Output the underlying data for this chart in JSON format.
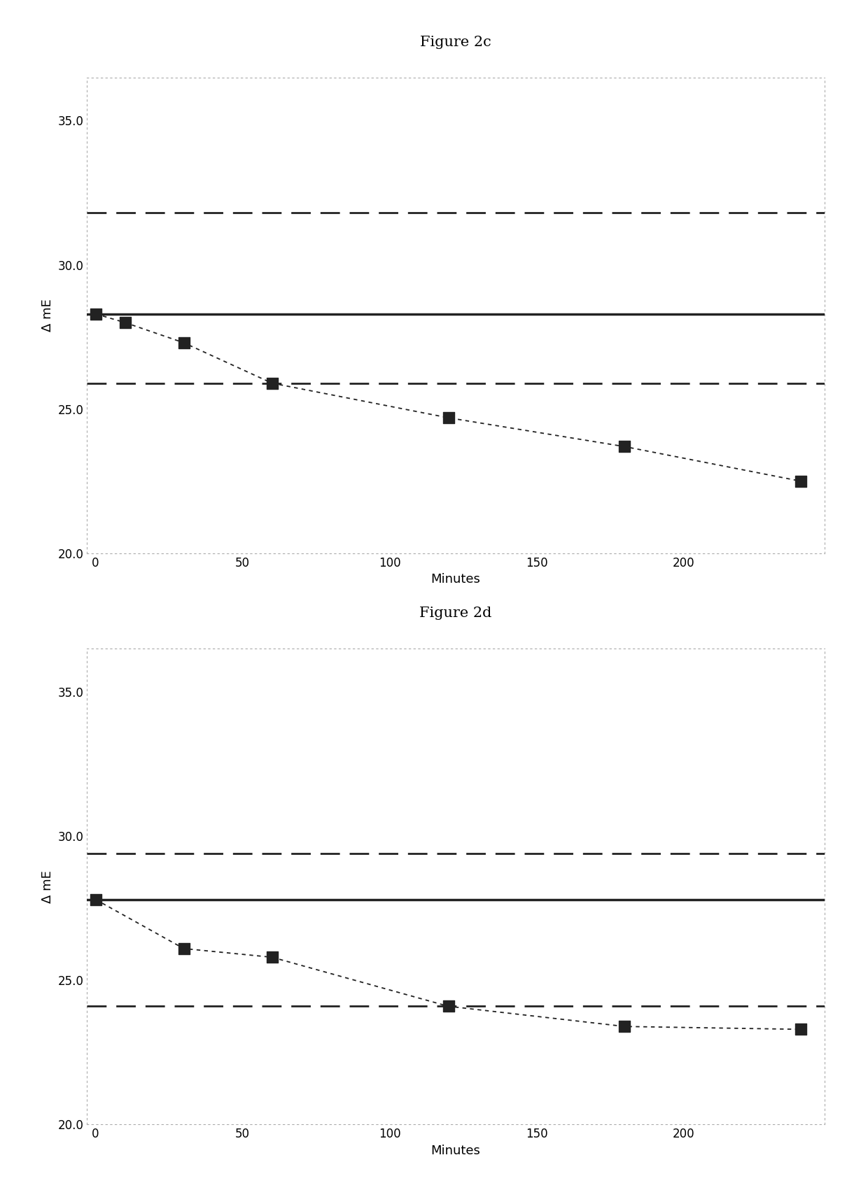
{
  "fig_c": {
    "title": "Figure 2c",
    "xlabel": "Minutes",
    "ylabel": "Δ mE",
    "ylim": [
      20.0,
      36.5
    ],
    "xlim": [
      -3,
      248
    ],
    "yticks": [
      20.0,
      25.0,
      30.0,
      35.0
    ],
    "xticks": [
      0,
      50,
      100,
      150,
      200
    ],
    "data_x": [
      0,
      10,
      30,
      60,
      120,
      180,
      240
    ],
    "data_y": [
      28.3,
      28.0,
      27.3,
      25.9,
      24.7,
      23.7,
      22.5
    ],
    "hline_solid": 28.3,
    "hline_dash_upper": 31.8,
    "hline_dash_lower": 25.9
  },
  "fig_d": {
    "title": "Figure 2d",
    "xlabel": "Minutes",
    "ylabel": "Δ mE",
    "ylim": [
      20.0,
      36.5
    ],
    "xlim": [
      -3,
      248
    ],
    "yticks": [
      20.0,
      25.0,
      30.0,
      35.0
    ],
    "xticks": [
      0,
      50,
      100,
      150,
      200
    ],
    "data_x": [
      0,
      30,
      60,
      120,
      180,
      240
    ],
    "data_y": [
      27.8,
      26.1,
      25.8,
      24.1,
      23.4,
      23.3
    ],
    "hline_solid": 27.8,
    "hline_dash_upper": 29.4,
    "hline_dash_lower": 24.1
  },
  "background_color": "#ffffff",
  "plot_bg_color": "#ffffff",
  "line_color": "#222222",
  "marker_color": "#222222",
  "marker_size": 11,
  "solid_lw": 2.5,
  "dash_lw": 2.0,
  "dot_lw": 1.3,
  "title_fontsize": 15,
  "label_fontsize": 13,
  "tick_fontsize": 12
}
